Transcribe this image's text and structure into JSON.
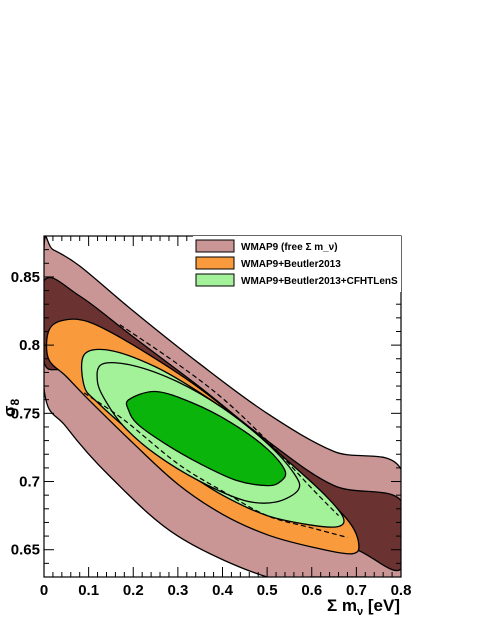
{
  "chart_data": {
    "type": "contour",
    "xlabel": "Σ m_ν [eV]",
    "ylabel": "σ_8",
    "xlim": [
      0,
      0.8
    ],
    "ylim": [
      0.63,
      0.88
    ],
    "x_ticks": [
      "0",
      "0.1",
      "0.2",
      "0.3",
      "0.4",
      "0.5",
      "0.6",
      "0.7",
      "0.8"
    ],
    "y_ticks": [
      "0.65",
      "0.7",
      "0.75",
      "0.8",
      "0.85"
    ],
    "x_tick_values": [
      0,
      0.1,
      0.2,
      0.3,
      0.4,
      0.5,
      0.6,
      0.7,
      0.8
    ],
    "y_tick_values": [
      0.65,
      0.7,
      0.75,
      0.8,
      0.85
    ],
    "legend_position": "top-right",
    "series": [
      {
        "name": "WMAP9 (free Σ m_ν)",
        "color_outer": "#c99595",
        "color_inner": "#6b3232",
        "contour_95": [
          [
            0,
            0.872
          ],
          [
            0.02,
            0.87
          ],
          [
            0.08,
            0.858
          ],
          [
            0.2,
            0.825
          ],
          [
            0.35,
            0.786
          ],
          [
            0.5,
            0.75
          ],
          [
            0.65,
            0.722
          ],
          [
            0.8,
            0.709
          ],
          [
            0.8,
            0.63
          ],
          [
            0.72,
            0.63
          ],
          [
            0.6,
            0.63
          ],
          [
            0.5,
            0.63
          ],
          [
            0.3,
            0.66
          ],
          [
            0.15,
            0.703
          ],
          [
            0.05,
            0.74
          ],
          [
            0,
            0.768
          ]
        ],
        "contour_68": [
          [
            0,
            0.847
          ],
          [
            0.08,
            0.836
          ],
          [
            0.2,
            0.806
          ],
          [
            0.35,
            0.769
          ],
          [
            0.5,
            0.73
          ],
          [
            0.65,
            0.697
          ],
          [
            0.8,
            0.686
          ],
          [
            0.8,
            0.636
          ],
          [
            0.7,
            0.65
          ],
          [
            0.6,
            0.656
          ],
          [
            0.45,
            0.68
          ],
          [
            0.3,
            0.716
          ],
          [
            0.15,
            0.754
          ],
          [
            0.05,
            0.78
          ],
          [
            0,
            0.788
          ]
        ]
      },
      {
        "name": "WMAP9+Beutler2013",
        "color_outer": "#f99a3c",
        "color_inner": "#a3f29a",
        "contour_95": [
          [
            0.01,
            0.81
          ],
          [
            0.04,
            0.818
          ],
          [
            0.1,
            0.817
          ],
          [
            0.2,
            0.8
          ],
          [
            0.35,
            0.768
          ],
          [
            0.5,
            0.728
          ],
          [
            0.6,
            0.698
          ],
          [
            0.68,
            0.672
          ],
          [
            0.705,
            0.655
          ],
          [
            0.69,
            0.647
          ],
          [
            0.6,
            0.652
          ],
          [
            0.5,
            0.661
          ],
          [
            0.4,
            0.676
          ],
          [
            0.3,
            0.698
          ],
          [
            0.2,
            0.728
          ],
          [
            0.1,
            0.76
          ],
          [
            0.05,
            0.777
          ],
          [
            0.01,
            0.79
          ]
        ],
        "contour_68": [
          [
            0.09,
            0.793
          ],
          [
            0.15,
            0.796
          ],
          [
            0.25,
            0.784
          ],
          [
            0.35,
            0.765
          ],
          [
            0.45,
            0.742
          ],
          [
            0.55,
            0.714
          ],
          [
            0.63,
            0.69
          ],
          [
            0.67,
            0.674
          ],
          [
            0.66,
            0.667
          ],
          [
            0.6,
            0.668
          ],
          [
            0.5,
            0.675
          ],
          [
            0.4,
            0.69
          ],
          [
            0.3,
            0.711
          ],
          [
            0.2,
            0.735
          ],
          [
            0.12,
            0.758
          ],
          [
            0.09,
            0.77
          ]
        ]
      },
      {
        "name": "WMAP9+Beutler2013+CFHTLenS",
        "color_outer": "#a3f29a",
        "color_inner": "#0ab40a",
        "contour_95": [
          [
            0.13,
            0.786
          ],
          [
            0.2,
            0.785
          ],
          [
            0.3,
            0.773
          ],
          [
            0.4,
            0.754
          ],
          [
            0.5,
            0.728
          ],
          [
            0.56,
            0.706
          ],
          [
            0.57,
            0.694
          ],
          [
            0.52,
            0.685
          ],
          [
            0.45,
            0.686
          ],
          [
            0.35,
            0.7
          ],
          [
            0.25,
            0.72
          ],
          [
            0.18,
            0.74
          ],
          [
            0.14,
            0.758
          ],
          [
            0.12,
            0.773
          ]
        ],
        "contour_68": [
          [
            0.19,
            0.76
          ],
          [
            0.25,
            0.766
          ],
          [
            0.33,
            0.758
          ],
          [
            0.42,
            0.743
          ],
          [
            0.5,
            0.724
          ],
          [
            0.54,
            0.708
          ],
          [
            0.53,
            0.7
          ],
          [
            0.5,
            0.697
          ],
          [
            0.43,
            0.701
          ],
          [
            0.35,
            0.713
          ],
          [
            0.27,
            0.728
          ],
          [
            0.21,
            0.742
          ],
          [
            0.19,
            0.752
          ]
        ]
      }
    ],
    "dashed_curves": [
      [
        [
          0.17,
          0.815
        ],
        [
          0.3,
          0.786
        ],
        [
          0.4,
          0.761
        ],
        [
          0.5,
          0.73
        ],
        [
          0.6,
          0.695
        ],
        [
          0.66,
          0.675
        ]
      ],
      [
        [
          0.09,
          0.765
        ],
        [
          0.18,
          0.745
        ],
        [
          0.3,
          0.713
        ],
        [
          0.4,
          0.693
        ],
        [
          0.5,
          0.675
        ],
        [
          0.6,
          0.666
        ],
        [
          0.68,
          0.659
        ]
      ]
    ]
  }
}
